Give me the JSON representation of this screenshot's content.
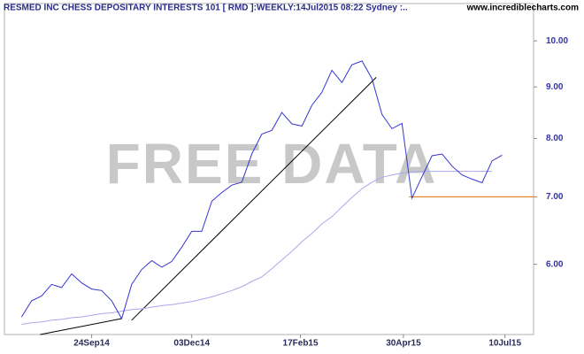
{
  "chart_data": {
    "type": "line",
    "title": "RESMED INC CHESS DEPOSITARY INTERESTS 101 [ RMD ]:WEEKLY:14Jul2015 08:22 Sydney :..",
    "source": "www.incrediblecharts.com",
    "watermark": "FREE DATA",
    "log_scale": true,
    "x": [
      "2014-08-06",
      "2014-08-13",
      "2014-08-20",
      "2014-08-27",
      "2014-09-03",
      "2014-09-10",
      "2014-09-17",
      "2014-09-24",
      "2014-10-01",
      "2014-10-08",
      "2014-10-15",
      "2014-10-22",
      "2014-10-29",
      "2014-11-05",
      "2014-11-12",
      "2014-11-19",
      "2014-11-26",
      "2014-12-03",
      "2014-12-10",
      "2014-12-17",
      "2014-12-24",
      "2014-12-31",
      "2015-01-07",
      "2015-01-14",
      "2015-01-21",
      "2015-01-28",
      "2015-02-04",
      "2015-02-11",
      "2015-02-18",
      "2015-02-25",
      "2015-03-04",
      "2015-03-11",
      "2015-03-18",
      "2015-03-25",
      "2015-04-01",
      "2015-04-08",
      "2015-04-15",
      "2015-04-22",
      "2015-04-29",
      "2015-05-06",
      "2015-05-13",
      "2015-05-20",
      "2015-05-27",
      "2015-06-03",
      "2015-06-10",
      "2015-06-17",
      "2015-06-24",
      "2015-07-01",
      "2015-07-08"
    ],
    "series": [
      {
        "color": "#3535d0",
        "values": [
          5.32,
          5.52,
          5.58,
          5.73,
          5.69,
          5.87,
          5.75,
          5.67,
          5.65,
          5.52,
          5.3,
          5.73,
          5.93,
          6.05,
          5.96,
          6.04,
          6.24,
          6.47,
          6.47,
          6.93,
          7.07,
          7.19,
          7.24,
          7.72,
          8.08,
          8.15,
          8.49,
          8.27,
          8.23,
          8.63,
          8.89,
          9.35,
          9.09,
          9.47,
          9.55,
          9.17,
          8.45,
          8.18,
          8.28,
          6.98,
          7.33,
          7.69,
          7.72,
          7.51,
          7.36,
          7.29,
          7.23,
          7.6,
          7.7
        ]
      },
      {
        "color": "#a8a8ec",
        "values": [
          5.23,
          5.25,
          5.26,
          5.28,
          5.29,
          5.31,
          5.32,
          5.34,
          5.36,
          5.37,
          5.39,
          5.41,
          5.42,
          5.44,
          5.46,
          5.47,
          5.49,
          5.51,
          5.54,
          5.57,
          5.61,
          5.65,
          5.7,
          5.77,
          5.83,
          5.94,
          6.06,
          6.18,
          6.32,
          6.44,
          6.58,
          6.69,
          6.84,
          6.99,
          7.13,
          7.24,
          7.32,
          7.36,
          7.39,
          7.41,
          7.42,
          7.42,
          7.42,
          7.42,
          7.42,
          7.42,
          7.42,
          7.42,
          null
        ]
      }
    ],
    "lines": [
      {
        "color": "#000000",
        "x": [
          "2014-08-19",
          "2014-10-15"
        ],
        "values": [
          5.11,
          5.3
        ]
      },
      {
        "color": "#000000",
        "x": [
          "2014-10-22",
          "2015-04-11"
        ],
        "values": [
          5.28,
          9.2
        ]
      },
      {
        "color": "#e07000",
        "x": [
          "2015-05-04",
          "2015-07-30"
        ],
        "values": [
          7.0,
          7.0
        ]
      }
    ],
    "xlim": [
      "2014-07-25",
      "2015-07-30"
    ],
    "xticks": [
      {
        "value": "2014-09-24",
        "label": "24Sep14"
      },
      {
        "value": "2014-12-03",
        "label": "03Dec14"
      },
      {
        "value": "2015-02-17",
        "label": "17Feb15"
      },
      {
        "value": "2015-04-30",
        "label": "30Apr15"
      },
      {
        "value": "2015-07-10",
        "label": "10Jul15"
      }
    ],
    "ylim": [
      5.11,
      10.89
    ],
    "yticks": [
      {
        "value": 6,
        "label": "6.00"
      },
      {
        "value": 7,
        "label": "7.00"
      },
      {
        "value": 8,
        "label": "8.00"
      },
      {
        "value": 9,
        "label": "9.00"
      },
      {
        "value": 10,
        "label": "10.00"
      }
    ]
  }
}
